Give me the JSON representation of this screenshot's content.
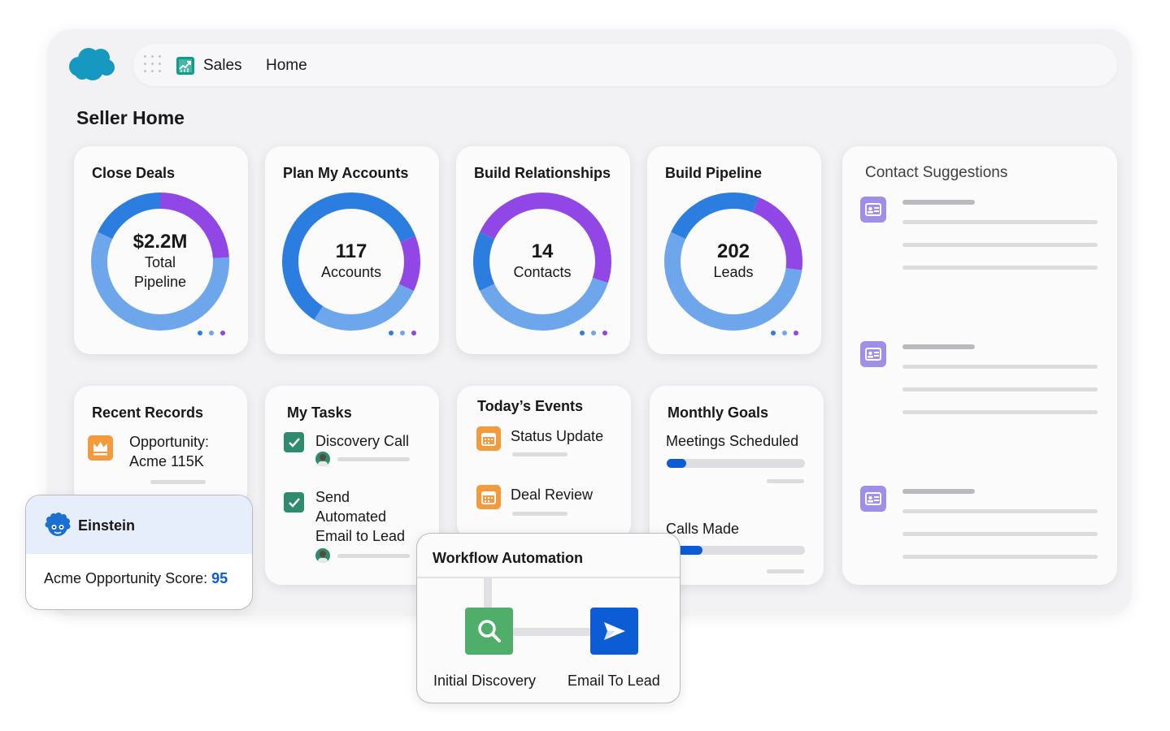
{
  "header": {
    "app_launcher_icon": "app-launcher-grid-icon",
    "app_icon": "sales-chart-icon",
    "app_name": "Sales",
    "tab": "Home"
  },
  "page": {
    "title": "Seller Home"
  },
  "colors": {
    "brand_blue": "#1798c1",
    "donut_blue": "#2b7de0",
    "donut_light_blue": "#6ea6ec",
    "donut_purple": "#9146e6",
    "progress_blue": "#0b5cd5",
    "task_green": "#2e8b6d",
    "event_orange": "#f29a3c",
    "contact_purple": "#9f8fe8",
    "score_blue": "#0b5cd5"
  },
  "donut_cards": [
    {
      "title": "Close Deals",
      "value": "$2.2M",
      "label1": "Total",
      "label2": "Pipeline",
      "segments": [
        {
          "color": "#9146e6",
          "fraction": 0.24
        },
        {
          "color": "#6ea6ec",
          "fraction": 0.58
        },
        {
          "color": "#2b7de0",
          "fraction": 0.18
        }
      ]
    },
    {
      "title": "Plan My Accounts",
      "value": "117",
      "label1": "Accounts",
      "label2": "",
      "segments": [
        {
          "color": "#2b7de0",
          "fraction": 0.19
        },
        {
          "color": "#9146e6",
          "fraction": 0.13
        },
        {
          "color": "#6ea6ec",
          "fraction": 0.27
        },
        {
          "color": "#2b7de0",
          "fraction": 0.41
        }
      ]
    },
    {
      "title": "Build Relationships",
      "value": "14",
      "label1": "Contacts",
      "label2": "",
      "segments": [
        {
          "color": "#9146e6",
          "fraction": 0.3
        },
        {
          "color": "#6ea6ec",
          "fraction": 0.38
        },
        {
          "color": "#2b7de0",
          "fraction": 0.14
        },
        {
          "color": "#9146e6",
          "fraction": 0.18
        }
      ]
    },
    {
      "title": "Build Pipeline",
      "value": "202",
      "label1": "Leads",
      "label2": "",
      "segments": [
        {
          "color": "#2b7de0",
          "fraction": 0.06
        },
        {
          "color": "#9146e6",
          "fraction": 0.21
        },
        {
          "color": "#6ea6ec",
          "fraction": 0.55
        },
        {
          "color": "#2b7de0",
          "fraction": 0.18
        }
      ]
    }
  ],
  "contact_suggestions": {
    "title": "Contact Suggestions",
    "icon": "contact-card-icon"
  },
  "recent_records": {
    "title": "Recent Records",
    "icon": "opportunity-crown-icon",
    "item_line1": "Opportunity:",
    "item_line2": "Acme 115K"
  },
  "my_tasks": {
    "title": "My Tasks",
    "tasks": [
      {
        "label": "Discovery Call",
        "done": true
      },
      {
        "line1": "Send",
        "line2": "Automated",
        "line3": "Email to Lead",
        "done": true
      }
    ]
  },
  "todays_events": {
    "title": "Today’s Events",
    "icon": "calendar-icon",
    "events": [
      "Status Update",
      "Deal Review"
    ]
  },
  "monthly_goals": {
    "title": "Monthly Goals",
    "goals": [
      {
        "label": "Meetings Scheduled",
        "progress": 0.14
      },
      {
        "label": "Calls Made",
        "progress": 0.26
      }
    ]
  },
  "einstein": {
    "icon": "einstein-icon",
    "title": "Einstein",
    "score_label": "Acme Opportunity Score:",
    "score_value": "95"
  },
  "workflow": {
    "title": "Workflow Automation",
    "steps": [
      {
        "icon": "search-icon",
        "label": "Initial Discovery",
        "color": "#4fae6a"
      },
      {
        "icon": "send-icon",
        "label": "Email To Lead",
        "color": "#0b5cd5"
      }
    ]
  }
}
